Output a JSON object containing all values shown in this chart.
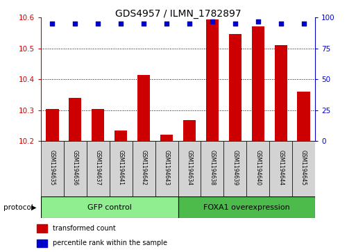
{
  "title": "GDS4957 / ILMN_1782897",
  "samples": [
    "GSM1194635",
    "GSM1194636",
    "GSM1194637",
    "GSM1194641",
    "GSM1194642",
    "GSM1194643",
    "GSM1194634",
    "GSM1194638",
    "GSM1194639",
    "GSM1194640",
    "GSM1194644",
    "GSM1194645"
  ],
  "transformed_count": [
    10.305,
    10.34,
    10.305,
    10.235,
    10.415,
    10.22,
    10.268,
    10.595,
    10.548,
    10.572,
    10.512,
    10.36
  ],
  "percentile_rank": [
    95,
    95,
    95,
    95,
    95,
    95,
    95,
    97,
    95,
    97,
    95,
    95
  ],
  "ylim_left": [
    10.2,
    10.6
  ],
  "ylim_right": [
    0,
    100
  ],
  "yticks_left": [
    10.2,
    10.3,
    10.4,
    10.5,
    10.6
  ],
  "yticks_right": [
    0,
    25,
    50,
    75,
    100
  ],
  "bar_color": "#cc0000",
  "dot_color": "#0000cc",
  "gfp_count": 6,
  "foxa1_count": 6,
  "group_labels": [
    "GFP control",
    "FOXA1 overexpression"
  ],
  "protocol_label": "protocol",
  "legend_bar_label": "transformed count",
  "legend_dot_label": "percentile rank within the sample",
  "bar_bottom": 10.2,
  "tick_label_color_left": "#cc0000",
  "tick_label_color_right": "#0000cc",
  "gfp_color": "#90EE90",
  "foxa1_color": "#4CBB4C",
  "sample_box_color": "#d3d3d3"
}
